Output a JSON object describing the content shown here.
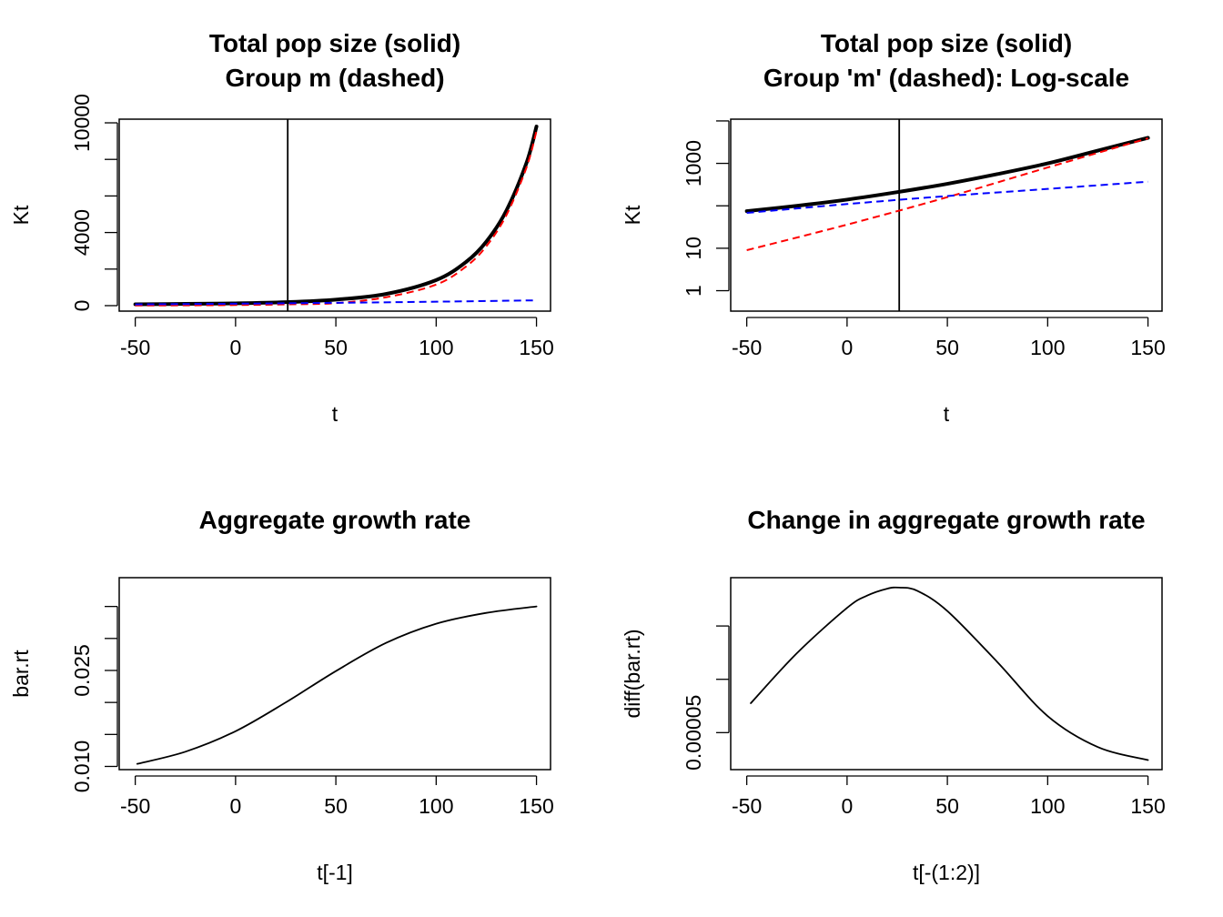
{
  "chart_data": [
    {
      "type": "line",
      "title_lines": [
        "Total pop size (solid)",
        "Group m (dashed)"
      ],
      "xlabel": "t",
      "ylabel": "Kt",
      "y_scale": "linear",
      "xlim": [
        -58,
        157
      ],
      "ylim": [
        -300,
        10200
      ],
      "x_ticks": [
        -50,
        0,
        50,
        100,
        150
      ],
      "x_tick_labels": [
        "-50",
        "0",
        "50",
        "100",
        "150"
      ],
      "y_ticks": [
        0,
        2000,
        4000,
        6000,
        8000,
        10000
      ],
      "y_tick_labels": [
        "0",
        "",
        "4000",
        "",
        "",
        "10000"
      ],
      "vline_x": 26,
      "series": [
        {
          "style": "solid",
          "color": "#000000",
          "width": 4,
          "x": [
            -50,
            -25,
            0,
            25,
            50,
            75,
            100,
            115,
            125,
            135,
            145,
            150
          ],
          "y": [
            75,
            95,
            125,
            190,
            330,
            640,
            1400,
            2400,
            3500,
            5200,
            7800,
            9800
          ]
        },
        {
          "style": "dashed",
          "color": "#ff0000",
          "width": 2,
          "x": [
            -50,
            -25,
            0,
            25,
            50,
            75,
            100,
            115,
            125,
            135,
            145,
            150
          ],
          "y": [
            9,
            17,
            33,
            68,
            140,
            460,
            1150,
            2150,
            3250,
            4950,
            7550,
            9550
          ]
        },
        {
          "style": "dashed",
          "color": "#0000ff",
          "width": 2,
          "x": [
            -50,
            0,
            50,
            100,
            150
          ],
          "y": [
            68,
            105,
            155,
            215,
            290
          ]
        }
      ]
    },
    {
      "type": "line",
      "title_lines": [
        "Total pop size (solid)",
        "Group 'm' (dashed): Log-scale"
      ],
      "xlabel": "t",
      "ylabel": "Kt",
      "y_scale": "log",
      "xlim": [
        -58,
        157
      ],
      "ylim": [
        0.33,
        11000
      ],
      "x_ticks": [
        -50,
        0,
        50,
        100,
        150
      ],
      "x_tick_labels": [
        "-50",
        "0",
        "50",
        "100",
        "150"
      ],
      "y_ticks": [
        1,
        10,
        100,
        1000,
        10000
      ],
      "y_tick_labels": [
        "1",
        "10",
        "",
        "1000",
        ""
      ],
      "vline_x": 26,
      "series": [
        {
          "style": "solid",
          "color": "#000000",
          "width": 4,
          "x": [
            -50,
            -25,
            0,
            25,
            50,
            75,
            100,
            125,
            150
          ],
          "y": [
            75,
            100,
            140,
            210,
            330,
            560,
            1000,
            2000,
            4000
          ]
        },
        {
          "style": "dashed",
          "color": "#ff0000",
          "width": 2,
          "x": [
            -50,
            0,
            50,
            100,
            150
          ],
          "y": [
            9,
            36,
            160,
            800,
            3900
          ]
        },
        {
          "style": "dashed",
          "color": "#0000ff",
          "width": 2,
          "x": [
            -50,
            0,
            50,
            100,
            150
          ],
          "y": [
            68,
            110,
            170,
            250,
            370
          ]
        }
      ]
    },
    {
      "type": "line",
      "title_lines": [
        "Aggregate growth rate"
      ],
      "xlabel": "t[-1]",
      "ylabel": "bar.rt",
      "y_scale": "linear",
      "xlim": [
        -58,
        157
      ],
      "ylim": [
        0.0095,
        0.0395
      ],
      "x_ticks": [
        -50,
        0,
        50,
        100,
        150
      ],
      "x_tick_labels": [
        "-50",
        "0",
        "50",
        "100",
        "150"
      ],
      "y_ticks": [
        0.01,
        0.015,
        0.02,
        0.025,
        0.03,
        0.035
      ],
      "y_tick_labels": [
        "0.010",
        "",
        "",
        "0.025",
        "",
        ""
      ],
      "series": [
        {
          "style": "solid",
          "color": "#000000",
          "width": 1.8,
          "x": [
            -49,
            -25,
            0,
            25,
            50,
            75,
            100,
            125,
            150
          ],
          "y": [
            0.0104,
            0.0123,
            0.0155,
            0.02,
            0.0249,
            0.0293,
            0.0323,
            0.034,
            0.035
          ]
        }
      ]
    },
    {
      "type": "line",
      "title_lines": [
        "Change in aggregate growth rate"
      ],
      "xlabel": "t[-(1:2)]",
      "ylabel": "diff(bar.rt)",
      "y_scale": "linear",
      "xlim": [
        -58,
        157
      ],
      "ylim": [
        1.53e-05,
        0.0001953
      ],
      "x_ticks": [
        -50,
        0,
        50,
        100,
        150
      ],
      "x_tick_labels": [
        "-50",
        "0",
        "50",
        "100",
        "150"
      ],
      "y_ticks": [
        5e-05,
        0.0001,
        0.00015
      ],
      "y_tick_labels": [
        "0.00005",
        "",
        ""
      ],
      "series": [
        {
          "style": "solid",
          "color": "#000000",
          "width": 1.8,
          "x": [
            -48,
            -25,
            0,
            10,
            20,
            26,
            35,
            50,
            75,
            100,
            125,
            150
          ],
          "y": [
            7.76e-05,
            0.0001245,
            0.000167,
            0.0001785,
            0.000185,
            0.000186,
            0.000183,
            0.000164,
            0.000116,
            6.55e-05,
            3.65e-05,
            2.43e-05
          ]
        }
      ]
    }
  ]
}
